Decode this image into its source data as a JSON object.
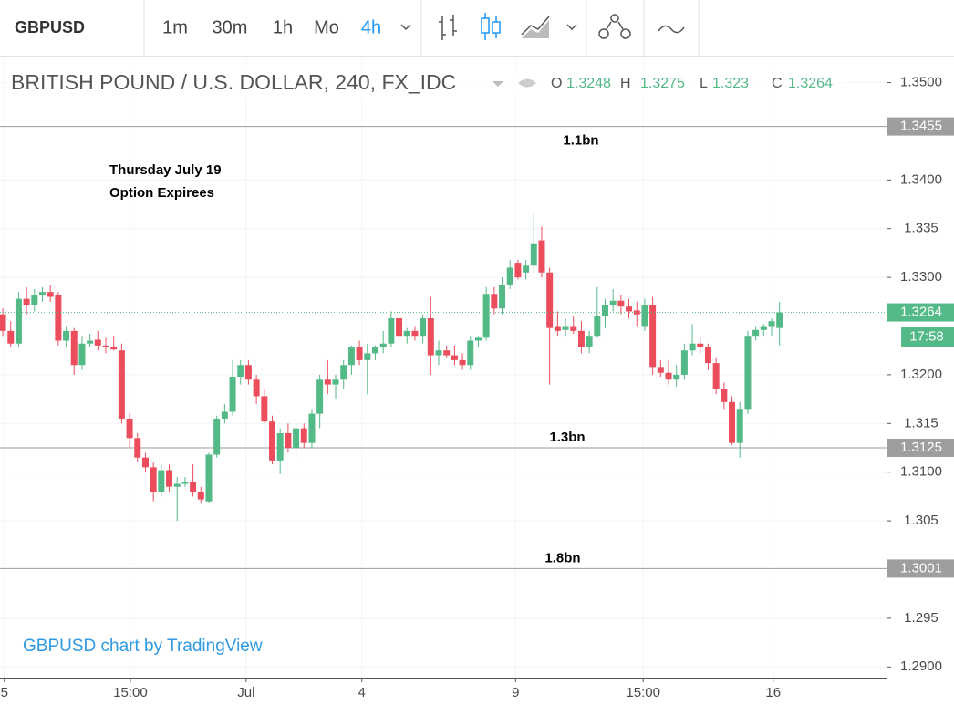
{
  "toolbar": {
    "symbol": "GBPUSD",
    "intervals": [
      "1m",
      "30m",
      "1h",
      "Mo",
      "4h"
    ],
    "active_interval": 4
  },
  "chart_data": {
    "type": "candlestick",
    "title": "BRITISH POUND / U.S. DOLLAR, 240, FX_IDC",
    "ohlc_labels": [
      "O",
      "H",
      "L",
      "C"
    ],
    "annotation": [
      "Thursday July 19",
      "Option Expirees"
    ],
    "watermark": "GBPUSD chart by TradingView",
    "countdown": "17:58",
    "up_color": "#53b987",
    "down_color": "#eb4d5c",
    "open": [
      1.3262,
      1.3245,
      1.3232,
      1.3278,
      1.3272,
      1.3282,
      1.3285,
      1.3282,
      1.3235,
      1.3245,
      1.321,
      1.3232,
      1.3236,
      1.323,
      1.3228,
      1.3225,
      1.3155,
      1.3135,
      1.3115,
      1.3105,
      1.308,
      1.3102,
      1.3085,
      1.3088,
      1.309,
      1.308,
      1.307,
      1.3118,
      1.3155,
      1.3162,
      1.3198,
      1.321,
      1.3195,
      1.3178,
      1.3152,
      1.3112,
      1.314,
      1.3125,
      1.3145,
      1.313,
      1.316,
      1.3195,
      1.319,
      1.3195,
      1.321,
      1.3228,
      1.3215,
      1.3222,
      1.3228,
      1.3232,
      1.3258,
      1.324,
      1.3245,
      1.324,
      1.3258,
      1.322,
      1.3225,
      1.322,
      1.3215,
      1.321,
      1.3235,
      1.3238,
      1.3283,
      1.3268,
      1.3292,
      1.3315,
      1.3305,
      1.3312,
      1.3338,
      1.3305,
      1.325,
      1.3246,
      1.325,
      1.3245,
      1.3228,
      1.324,
      1.326,
      1.3272,
      1.3276,
      1.327,
      1.3266,
      1.325,
      1.3272,
      1.3208,
      1.3202,
      1.3195,
      1.32,
      1.3225,
      1.3232,
      1.3228,
      1.3212,
      1.3185,
      1.3172,
      1.313,
      1.3165,
      1.324,
      1.3246,
      1.325,
      1.3248
    ],
    "high": [
      1.3268,
      1.3255,
      1.3285,
      1.329,
      1.3288,
      1.329,
      1.3292,
      1.3285,
      1.325,
      1.3248,
      1.324,
      1.3242,
      1.3245,
      1.3238,
      1.324,
      1.3232,
      1.316,
      1.314,
      1.312,
      1.311,
      1.3108,
      1.3108,
      1.3095,
      1.3095,
      1.3108,
      1.3085,
      1.312,
      1.3158,
      1.317,
      1.3215,
      1.3215,
      1.3215,
      1.32,
      1.3185,
      1.3158,
      1.3145,
      1.315,
      1.315,
      1.315,
      1.3165,
      1.32,
      1.3215,
      1.32,
      1.3215,
      1.323,
      1.3235,
      1.3232,
      1.323,
      1.3245,
      1.3265,
      1.3262,
      1.3248,
      1.325,
      1.3262,
      1.328,
      1.3235,
      1.323,
      1.323,
      1.3222,
      1.324,
      1.324,
      1.329,
      1.329,
      1.33,
      1.3318,
      1.3318,
      1.3318,
      1.3365,
      1.3352,
      1.331,
      1.3265,
      1.3258,
      1.326,
      1.3255,
      1.3245,
      1.329,
      1.3278,
      1.3288,
      1.3282,
      1.3278,
      1.3275,
      1.3278,
      1.328,
      1.3215,
      1.3215,
      1.321,
      1.3232,
      1.3252,
      1.3238,
      1.3232,
      1.3218,
      1.3192,
      1.3178,
      1.3172,
      1.3245,
      1.325,
      1.3252,
      1.3258,
      1.3275
    ],
    "low": [
      1.324,
      1.3228,
      1.3228,
      1.3262,
      1.3265,
      1.3275,
      1.3275,
      1.323,
      1.3228,
      1.32,
      1.3205,
      1.3228,
      1.3225,
      1.3222,
      1.3225,
      1.315,
      1.3125,
      1.311,
      1.31,
      1.307,
      1.3075,
      1.308,
      1.305,
      1.3085,
      1.3075,
      1.3068,
      1.3068,
      1.3115,
      1.315,
      1.3158,
      1.319,
      1.319,
      1.317,
      1.315,
      1.3108,
      1.3098,
      1.312,
      1.3115,
      1.3125,
      1.3125,
      1.3145,
      1.318,
      1.3175,
      1.3185,
      1.32,
      1.321,
      1.318,
      1.3215,
      1.3222,
      1.3228,
      1.3235,
      1.3232,
      1.3235,
      1.3232,
      1.32,
      1.321,
      1.3218,
      1.321,
      1.3205,
      1.3205,
      1.3228,
      1.3235,
      1.3262,
      1.3262,
      1.3288,
      1.3298,
      1.3298,
      1.3305,
      1.33,
      1.319,
      1.324,
      1.324,
      1.3242,
      1.3222,
      1.3222,
      1.3238,
      1.3248,
      1.3265,
      1.3262,
      1.3258,
      1.325,
      1.3245,
      1.32,
      1.3198,
      1.319,
      1.3188,
      1.3195,
      1.322,
      1.3222,
      1.3205,
      1.318,
      1.3165,
      1.3128,
      1.3115,
      1.316,
      1.3235,
      1.324,
      1.324,
      1.323
    ],
    "close": [
      1.3245,
      1.3232,
      1.3278,
      1.3272,
      1.3282,
      1.3285,
      1.328,
      1.3235,
      1.3245,
      1.321,
      1.3232,
      1.3235,
      1.323,
      1.3228,
      1.3226,
      1.3155,
      1.3135,
      1.3115,
      1.3105,
      1.308,
      1.3102,
      1.3085,
      1.3088,
      1.309,
      1.308,
      1.3072,
      1.3118,
      1.3155,
      1.3162,
      1.3198,
      1.321,
      1.3195,
      1.3178,
      1.3152,
      1.3112,
      1.314,
      1.3125,
      1.3145,
      1.313,
      1.316,
      1.3195,
      1.319,
      1.3195,
      1.321,
      1.3228,
      1.3215,
      1.3222,
      1.3228,
      1.3232,
      1.3258,
      1.324,
      1.3245,
      1.324,
      1.3258,
      1.322,
      1.3225,
      1.322,
      1.3215,
      1.321,
      1.3235,
      1.3238,
      1.3283,
      1.3268,
      1.3292,
      1.331,
      1.33,
      1.3312,
      1.3335,
      1.3305,
      1.3248,
      1.3245,
      1.325,
      1.3245,
      1.3228,
      1.324,
      1.326,
      1.3272,
      1.3276,
      1.327,
      1.3265,
      1.3262,
      1.3272,
      1.3208,
      1.3202,
      1.3195,
      1.32,
      1.3225,
      1.3232,
      1.3228,
      1.3212,
      1.3185,
      1.3172,
      1.313,
      1.3165,
      1.324,
      1.3246,
      1.325,
      1.3255,
      1.3264
    ],
    "levels": [
      {
        "value": 1.3455,
        "note": "1.1bn"
      },
      {
        "value": 1.3125,
        "note": "1.3bn"
      },
      {
        "value": 1.3001,
        "note": "1.8bn"
      }
    ],
    "xlim": [
      -0.35,
      111.5
    ],
    "xticks": [
      {
        "value": 0.2,
        "label": "5"
      },
      {
        "value": 16.1,
        "label": "15:00"
      },
      {
        "value": 30.7,
        "label": "Jul"
      },
      {
        "value": 45.3,
        "label": "4"
      },
      {
        "value": 64.7,
        "label": "9"
      },
      {
        "value": 80.8,
        "label": "15:00"
      },
      {
        "value": 97.2,
        "label": "16"
      }
    ],
    "ylim": [
      1.2889,
      1.3523
    ],
    "yticks": [
      {
        "value": 1.35,
        "label": "1.3500"
      },
      {
        "value": 1.34,
        "label": "1.3400"
      },
      1.335,
      {
        "value": 1.33,
        "label": "1.3300"
      },
      {
        "value": 1.32,
        "label": "1.3200"
      },
      1.315,
      {
        "value": 1.31,
        "label": "1.3100"
      },
      1.305,
      1.295,
      {
        "value": 1.29,
        "label": "1.2900"
      }
    ],
    "grid": true
  }
}
